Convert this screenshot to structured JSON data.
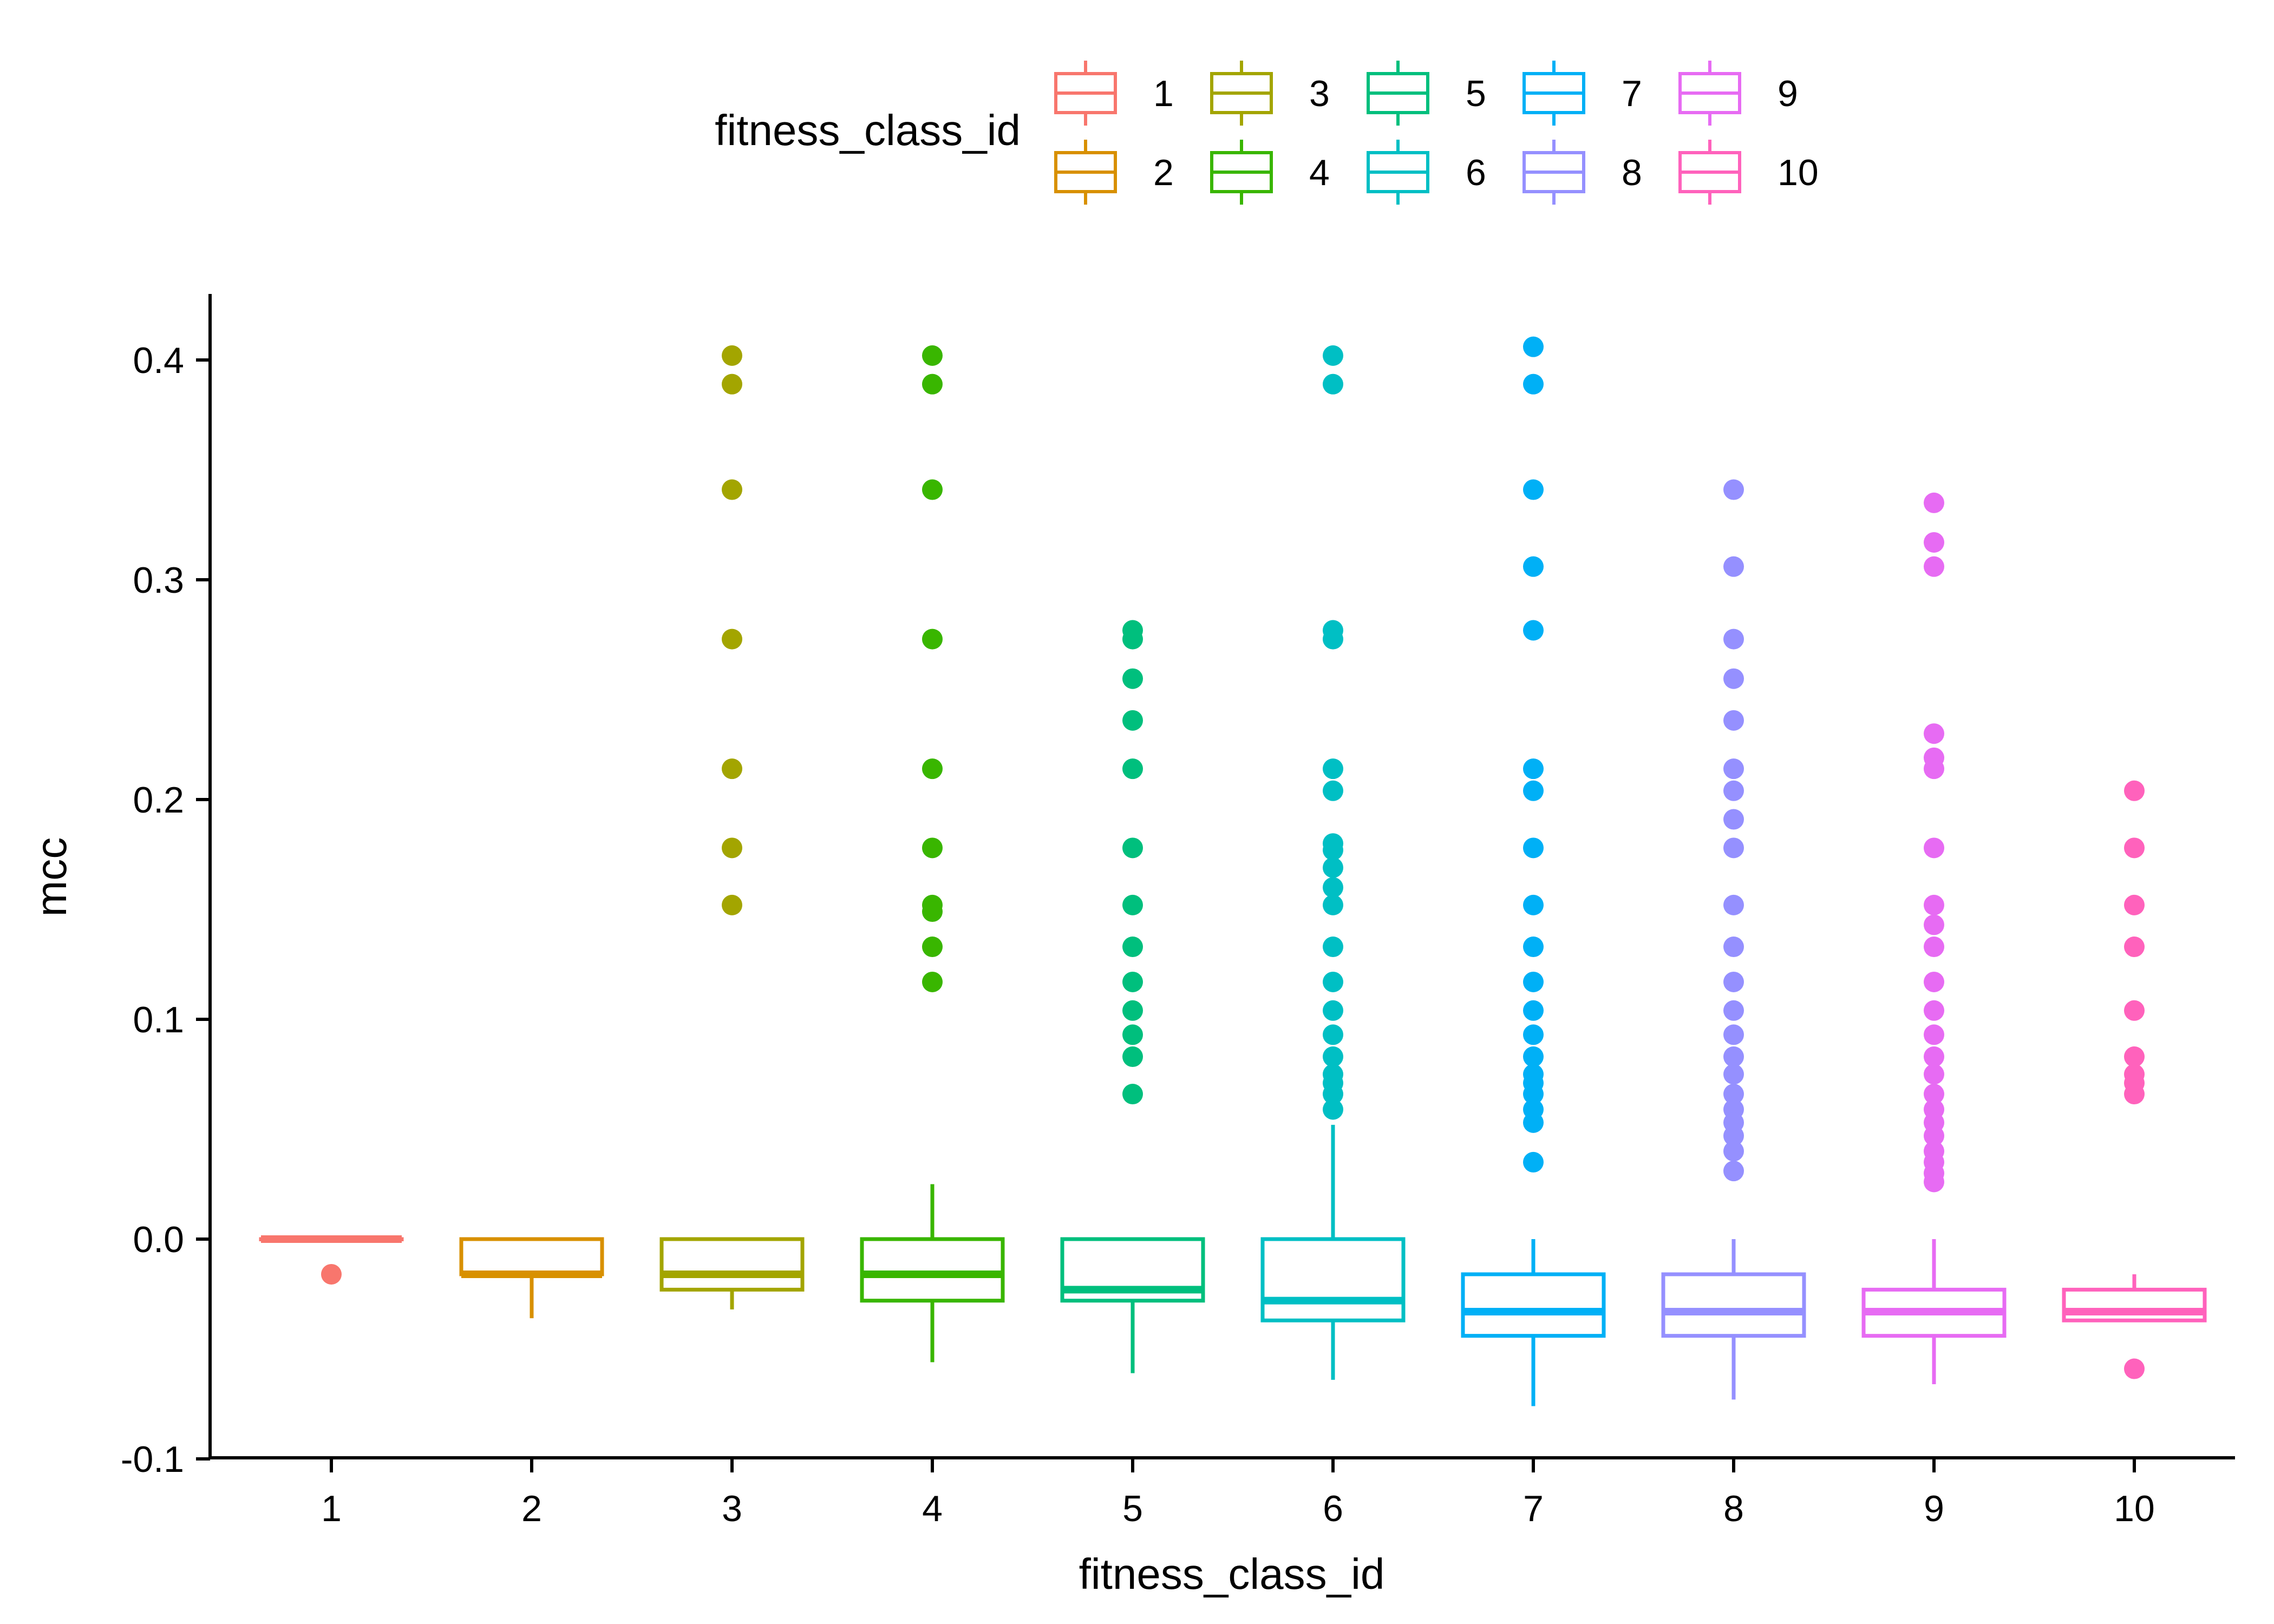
{
  "chart_data": {
    "type": "boxplot",
    "xlabel": "fitness_class_id",
    "ylabel": "mcc",
    "ylim": [
      -0.1,
      0.43
    ],
    "y_ticks": [
      -0.1,
      0.0,
      0.1,
      0.2,
      0.3,
      0.4
    ],
    "y_tick_labels": [
      "-0.1",
      "0.0",
      "0.1",
      "0.2",
      "0.3",
      "0.4"
    ],
    "grid": false,
    "legend": {
      "title": "fitness_class_id",
      "placement": "top",
      "entries": [
        "1",
        "2",
        "3",
        "4",
        "5",
        "6",
        "7",
        "8",
        "9",
        "10"
      ]
    },
    "categories": [
      "1",
      "2",
      "3",
      "4",
      "5",
      "6",
      "7",
      "8",
      "9",
      "10"
    ],
    "colors": [
      "#F8766D",
      "#D89000",
      "#A3A500",
      "#39B600",
      "#00BF7D",
      "#00BFC4",
      "#00B0F6",
      "#9590FF",
      "#E76BF3",
      "#FF62BC"
    ],
    "boxes": [
      {
        "q1": 0.0,
        "median": 0.0,
        "q3": 0.0,
        "whisker_low": 0.0,
        "whisker_high": 0.0,
        "outliers": [
          -0.016
        ]
      },
      {
        "q1": -0.016,
        "median": -0.016,
        "q3": 0.0,
        "whisker_low": -0.036,
        "whisker_high": 0.0,
        "outliers": []
      },
      {
        "q1": -0.023,
        "median": -0.016,
        "q3": 0.0,
        "whisker_low": -0.032,
        "whisker_high": 0.0,
        "outliers": [
          0.402,
          0.389,
          0.341,
          0.273,
          0.214,
          0.178,
          0.152
        ]
      },
      {
        "q1": -0.028,
        "median": -0.016,
        "q3": 0.0,
        "whisker_low": -0.056,
        "whisker_high": 0.025,
        "outliers": [
          0.402,
          0.389,
          0.341,
          0.273,
          0.214,
          0.178,
          0.152,
          0.149,
          0.133,
          0.117
        ]
      },
      {
        "q1": -0.028,
        "median": -0.023,
        "q3": 0.0,
        "whisker_low": -0.061,
        "whisker_high": 0.0,
        "outliers": [
          0.277,
          0.273,
          0.255,
          0.236,
          0.214,
          0.178,
          0.152,
          0.133,
          0.117,
          0.104,
          0.093,
          0.083,
          0.066
        ]
      },
      {
        "q1": -0.037,
        "median": -0.028,
        "q3": 0.0,
        "whisker_low": -0.064,
        "whisker_high": 0.052,
        "outliers": [
          0.402,
          0.389,
          0.277,
          0.273,
          0.214,
          0.204,
          0.18,
          0.177,
          0.169,
          0.16,
          0.152,
          0.133,
          0.117,
          0.104,
          0.093,
          0.083,
          0.075,
          0.071,
          0.066,
          0.059
        ]
      },
      {
        "q1": -0.044,
        "median": -0.033,
        "q3": -0.016,
        "whisker_low": -0.076,
        "whisker_high": 0.0,
        "outliers": [
          0.406,
          0.389,
          0.341,
          0.306,
          0.277,
          0.214,
          0.204,
          0.178,
          0.152,
          0.133,
          0.117,
          0.104,
          0.093,
          0.083,
          0.075,
          0.071,
          0.066,
          0.059,
          0.053,
          0.035
        ]
      },
      {
        "q1": -0.044,
        "median": -0.033,
        "q3": -0.016,
        "whisker_low": -0.073,
        "whisker_high": 0.0,
        "outliers": [
          0.341,
          0.306,
          0.273,
          0.255,
          0.236,
          0.214,
          0.204,
          0.191,
          0.178,
          0.152,
          0.133,
          0.117,
          0.104,
          0.093,
          0.083,
          0.075,
          0.066,
          0.059,
          0.053,
          0.047,
          0.04,
          0.031
        ]
      },
      {
        "q1": -0.044,
        "median": -0.033,
        "q3": -0.023,
        "whisker_low": -0.066,
        "whisker_high": 0.0,
        "outliers": [
          0.335,
          0.317,
          0.306,
          0.23,
          0.219,
          0.214,
          0.178,
          0.152,
          0.143,
          0.133,
          0.117,
          0.104,
          0.093,
          0.083,
          0.075,
          0.066,
          0.059,
          0.053,
          0.047,
          0.04,
          0.035,
          0.03,
          0.026
        ]
      },
      {
        "q1": -0.037,
        "median": -0.033,
        "q3": -0.023,
        "whisker_low": -0.037,
        "whisker_high": -0.016,
        "outliers": [
          0.204,
          0.178,
          0.152,
          0.133,
          0.104,
          0.083,
          0.075,
          0.071,
          0.066,
          -0.059
        ]
      }
    ]
  }
}
